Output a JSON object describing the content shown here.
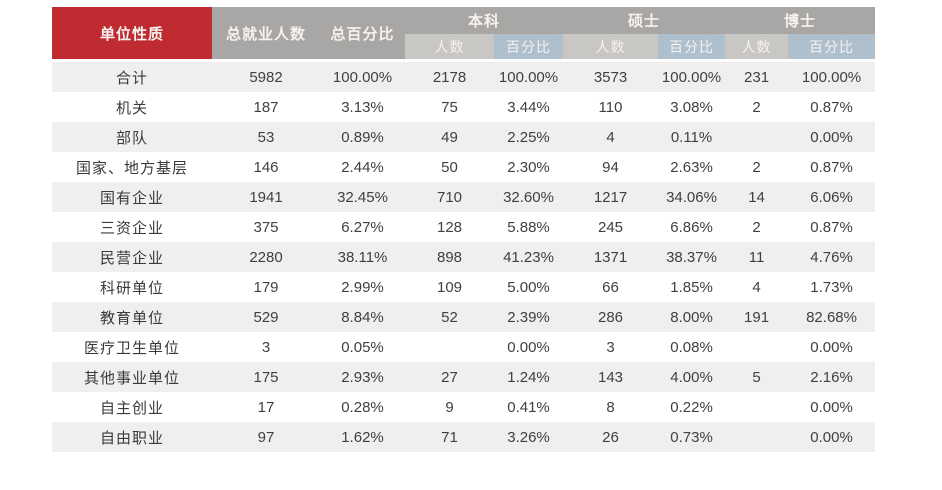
{
  "chart_data": {
    "type": "table",
    "header": {
      "unit_type": "单位性质",
      "total_employed": "总就业人数",
      "total_percent": "总百分比",
      "groups": [
        {
          "label": "本科"
        },
        {
          "label": "硕士"
        },
        {
          "label": "博士"
        }
      ],
      "sub_headers": {
        "count": "人数",
        "percent": "百分比"
      }
    },
    "rows": [
      {
        "label": "合计",
        "values": [
          "5982",
          "100.00%",
          "2178",
          "100.00%",
          "3573",
          "100.00%",
          "231",
          "100.00%"
        ]
      },
      {
        "label": "机关",
        "values": [
          "187",
          "3.13%",
          "75",
          "3.44%",
          "110",
          "3.08%",
          "2",
          "0.87%"
        ]
      },
      {
        "label": "部队",
        "values": [
          "53",
          "0.89%",
          "49",
          "2.25%",
          "4",
          "0.11%",
          "",
          "0.00%"
        ]
      },
      {
        "label": "国家、地方基层",
        "values": [
          "146",
          "2.44%",
          "50",
          "2.30%",
          "94",
          "2.63%",
          "2",
          "0.87%"
        ]
      },
      {
        "label": "国有企业",
        "values": [
          "1941",
          "32.45%",
          "710",
          "32.60%",
          "1217",
          "34.06%",
          "14",
          "6.06%"
        ]
      },
      {
        "label": "三资企业",
        "values": [
          "375",
          "6.27%",
          "128",
          "5.88%",
          "245",
          "6.86%",
          "2",
          "0.87%"
        ]
      },
      {
        "label": "民营企业",
        "values": [
          "2280",
          "38.11%",
          "898",
          "41.23%",
          "1371",
          "38.37%",
          "11",
          "4.76%"
        ]
      },
      {
        "label": "科研单位",
        "values": [
          "179",
          "2.99%",
          "109",
          "5.00%",
          "66",
          "1.85%",
          "4",
          "1.73%"
        ]
      },
      {
        "label": "教育单位",
        "values": [
          "529",
          "8.84%",
          "52",
          "2.39%",
          "286",
          "8.00%",
          "191",
          "82.68%"
        ]
      },
      {
        "label": "医疗卫生单位",
        "values": [
          "3",
          "0.05%",
          "",
          "0.00%",
          "3",
          "0.08%",
          "",
          "0.00%"
        ]
      },
      {
        "label": "其他事业单位",
        "values": [
          "175",
          "2.93%",
          "27",
          "1.24%",
          "143",
          "4.00%",
          "5",
          "2.16%"
        ]
      },
      {
        "label": "自主创业",
        "values": [
          "17",
          "0.28%",
          "9",
          "0.41%",
          "8",
          "0.22%",
          "",
          "0.00%"
        ]
      },
      {
        "label": "自由职业",
        "values": [
          "97",
          "1.62%",
          "71",
          "3.26%",
          "26",
          "0.73%",
          "",
          "0.00%"
        ]
      }
    ]
  },
  "colors": {
    "red": "#c02b31",
    "gray": "#a8a7a5",
    "count_bg": "#c9c7c4",
    "pct_bg": "#aebfce",
    "stripe": "#f0efed",
    "text": "#404040",
    "header_text": "#f5f2ef"
  }
}
